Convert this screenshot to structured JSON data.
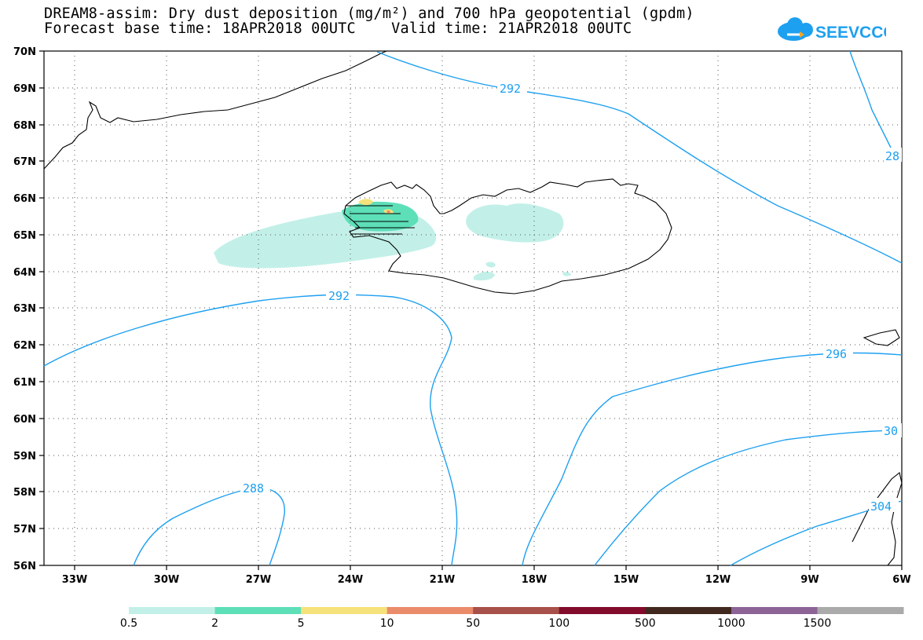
{
  "title_line1": "DREAM8-assim: Dry dust deposition (mg/m²) and 700 hPa geopotential (gpdm)",
  "title_line2": "Forecast base time: 18APR2018 00UTC    Valid time: 21APR2018 00UTC",
  "logo_text": "SEEVCCC",
  "lat_labels": [
    "70N",
    "69N",
    "68N",
    "67N",
    "66N",
    "65N",
    "64N",
    "63N",
    "62N",
    "61N",
    "60N",
    "59N",
    "58N",
    "57N",
    "56N"
  ],
  "lon_labels": [
    "33W",
    "30W",
    "27W",
    "24W",
    "21W",
    "18W",
    "15W",
    "12W",
    "9W",
    "6W"
  ],
  "contour_labels": {
    "c292_top": "292",
    "c292_mid": "292",
    "c288": "288",
    "c296": "296",
    "c300": "30",
    "c304": "304",
    "c28_edge": "28"
  },
  "legend": {
    "labels": [
      "0.5",
      "2",
      "5",
      "10",
      "50",
      "100",
      "500",
      "1000",
      "1500"
    ],
    "colors": [
      "#c2f0e8",
      "#5ddfb8",
      "#f5e27a",
      "#ea8c6a",
      "#a8504a",
      "#820a2a",
      "#40281e",
      "#8c6496",
      "#aaaaaa"
    ]
  },
  "colors": {
    "contour": "#1ea0f0",
    "deposition_light": "#c2f0e8",
    "deposition_mid": "#5ddfb8",
    "deposition_yellow": "#f5e27a",
    "deposition_orange": "#ea8c6a"
  }
}
